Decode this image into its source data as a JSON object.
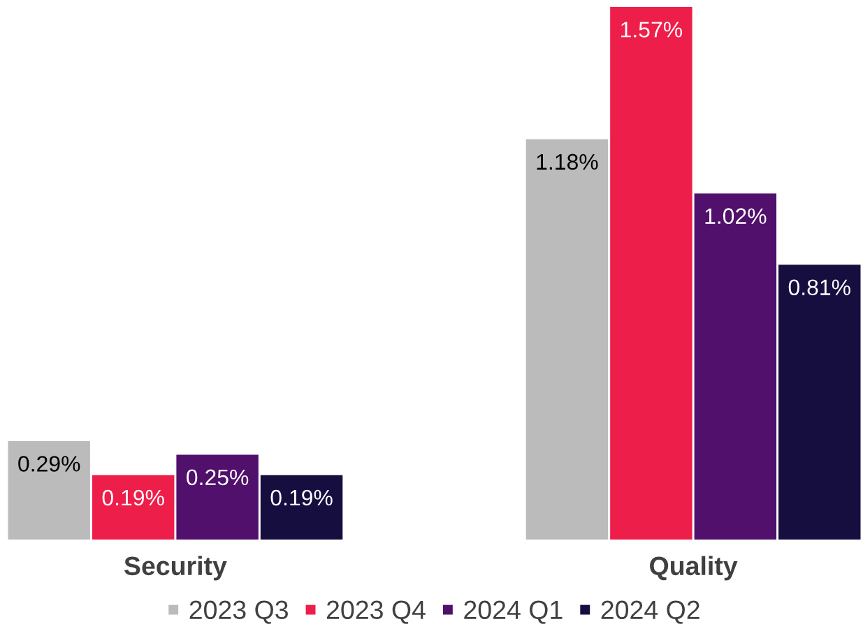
{
  "chart_data": {
    "type": "bar",
    "categories": [
      "Security",
      "Quality"
    ],
    "series": [
      {
        "name": "2023 Q3",
        "color": "#bbbbbb",
        "values": [
          0.29,
          1.18
        ],
        "value_labels": [
          "0.29%",
          "1.18%"
        ]
      },
      {
        "name": "2023 Q4",
        "color": "#ee1e4a",
        "values": [
          0.19,
          1.57
        ],
        "value_labels": [
          "0.19%",
          "1.57%"
        ]
      },
      {
        "name": "2024 Q1",
        "color": "#50106b",
        "values": [
          0.25,
          1.02
        ],
        "value_labels": [
          "0.25%",
          "1.02%"
        ]
      },
      {
        "name": "2024 Q2",
        "color": "#150e3f",
        "values": [
          0.19,
          0.81
        ],
        "value_labels": [
          "0.19%",
          "0.81%"
        ]
      }
    ],
    "legend": "bottom",
    "tick_labels": "x"
  }
}
